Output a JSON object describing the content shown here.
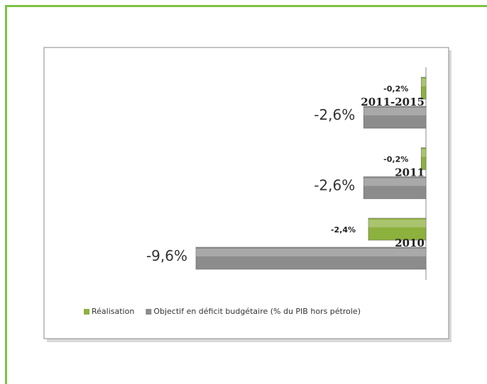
{
  "chart_data": {
    "type": "bar",
    "orientation": "horizontal",
    "categories": [
      "2010",
      "2011",
      "2011-2015"
    ],
    "xlim": [
      -10,
      0
    ],
    "legend": "bottom",
    "series": [
      {
        "name": "Réalisation",
        "color": "#8db13d",
        "values": [
          -2.4,
          -0.2,
          -0.2
        ],
        "value_labels": [
          "-2,4%",
          "-0,2%",
          "-0,2%"
        ]
      },
      {
        "name": "Objectif en déficit budgétaire (% du PIB hors pétrole)",
        "color": "#8c8c8c",
        "values": [
          -9.6,
          -2.6,
          -2.6
        ],
        "value_labels": [
          "-9,6%",
          "-2,6%",
          "-2,6%"
        ]
      }
    ]
  }
}
